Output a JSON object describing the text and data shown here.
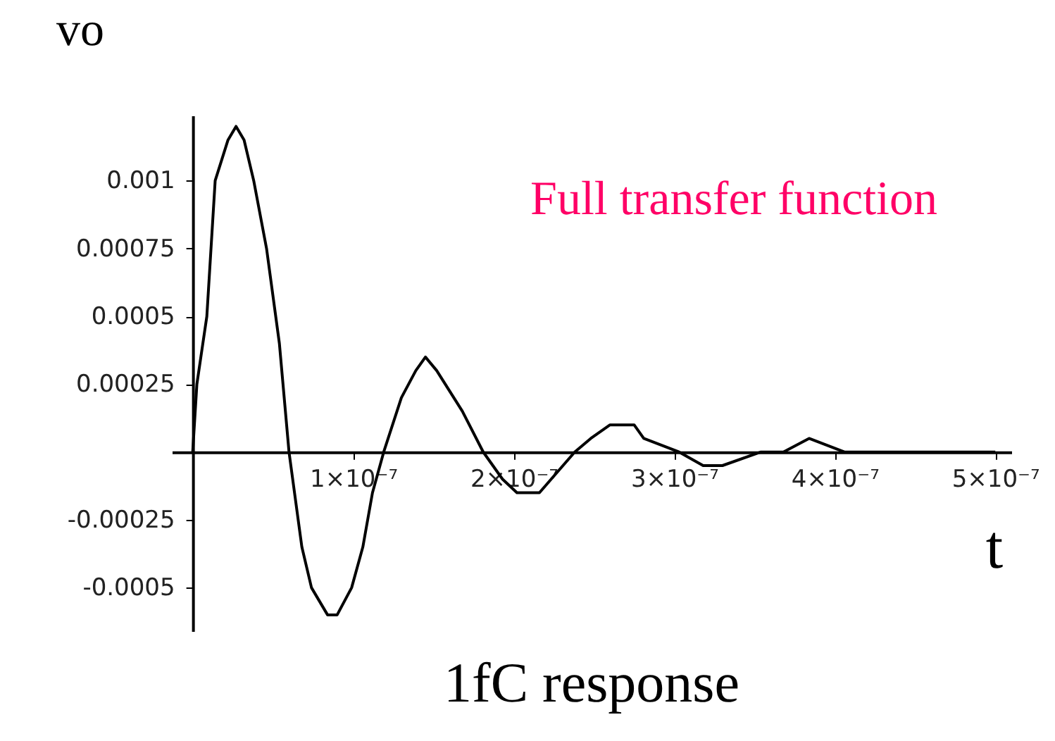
{
  "chart_data": {
    "type": "line",
    "title": "1fC response",
    "xlabel": "t",
    "ylabel": "vo",
    "annotations": [
      "Full transfer function"
    ],
    "x": [
      0,
      2.6e-09,
      8.8e-09,
      1.4e-08,
      2.2e-08,
      2.7e-08,
      3.2e-08,
      3.8e-08,
      4.6e-08,
      5.4e-08,
      6e-08,
      6.8e-08,
      7.4e-08,
      8.4e-08,
      9e-08,
      9.9e-08,
      1.06e-07,
      1.12e-07,
      1.19e-07,
      1.3e-07,
      1.39e-07,
      1.45e-07,
      1.52e-07,
      1.68e-07,
      1.81e-07,
      1.93e-07,
      2.02e-07,
      2.1e-07,
      2.16e-07,
      2.38e-07,
      2.48e-07,
      2.6e-07,
      2.75e-07,
      2.81e-07,
      3.03e-07,
      3.18e-07,
      3.3e-07,
      3.54e-07,
      3.68e-07,
      3.84e-07,
      4.06e-07,
      4.21e-07,
      4.35e-07,
      4.65e-07,
      4.79e-07,
      5e-07
    ],
    "series": [
      {
        "color": "#000000",
        "values": [
          0,
          0.00025,
          0.0005,
          0.001,
          0.00115,
          0.0012,
          0.00115,
          0.001,
          0.00075,
          0.0004,
          0,
          -0.00035,
          -0.0005,
          -0.0006,
          -0.0006,
          -0.0005,
          -0.00035,
          -0.00015,
          0,
          0.0002,
          0.0003,
          0.00035,
          0.0003,
          0.00015,
          0,
          -0.0001,
          -0.00015,
          -0.00015,
          -0.00015,
          0,
          5e-05,
          0.0001,
          0.0001,
          5e-05,
          0,
          -5e-05,
          -5e-05,
          0,
          0,
          5e-05,
          0,
          0,
          0,
          0,
          0,
          0
        ]
      }
    ],
    "xlim": [
      -1.3e-08,
      5.1e-07
    ],
    "xticks": [
      {
        "value": 1e-07,
        "label": "1×10⁻⁷"
      },
      {
        "value": 2e-07,
        "label": "2×10⁻⁷"
      },
      {
        "value": 3e-07,
        "label": "3×10⁻⁷"
      },
      {
        "value": 4e-07,
        "label": "4×10⁻⁷"
      },
      {
        "value": 5e-07,
        "label": "5×10⁻⁷"
      }
    ],
    "ylim": [
      -0.00066,
      0.00124
    ],
    "yticks": [
      -0.0005,
      -0.00025,
      0.00025,
      0.0005,
      0.00075,
      0.001
    ],
    "grid": false,
    "marker": "none",
    "line_style": "solid"
  }
}
